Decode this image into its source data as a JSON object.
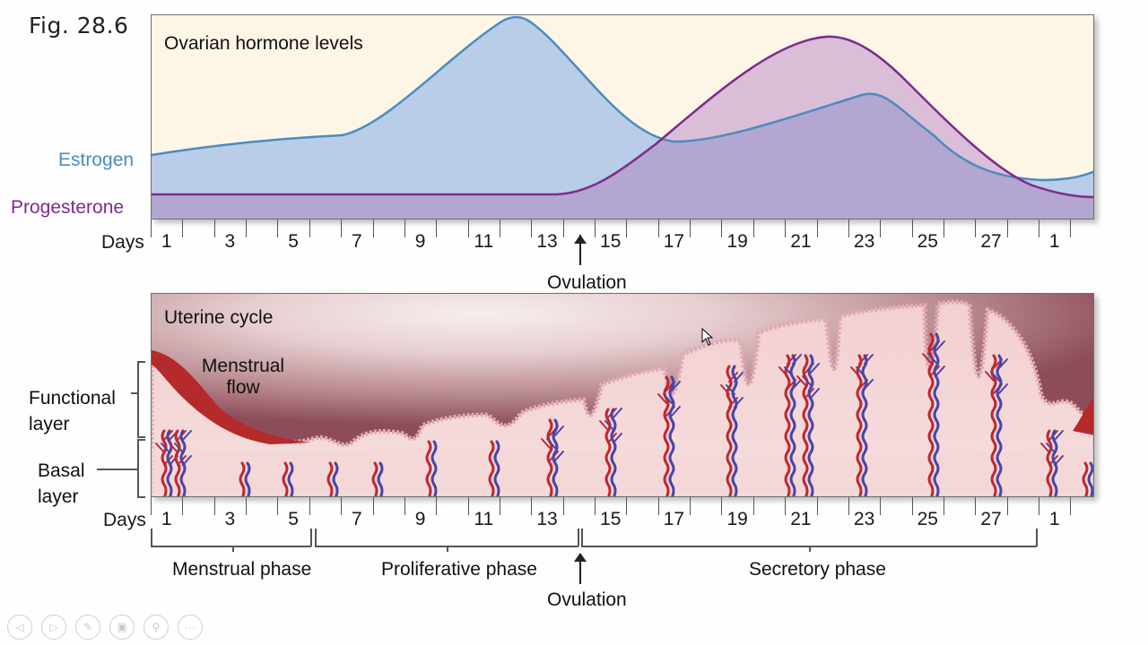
{
  "figure": {
    "label": "Fig. 28.6"
  },
  "hormone_panel": {
    "title": "Ovarian hormone levels",
    "series_labels": {
      "estrogen": "Estrogen",
      "progesterone": "Progesterone"
    },
    "colors": {
      "background": "#fdf6e6",
      "estrogen_line": "#4a8cc0",
      "estrogen_fill": "#b9cce8",
      "progesterone_line": "#7e2a8e",
      "progesterone_fill": "#b3a2cc",
      "progesterone_fill_above": "#d6b8d6"
    },
    "days_label": "Days",
    "day_ticks": [
      "1",
      "3",
      "5",
      "7",
      "9",
      "11",
      "13",
      "15",
      "17",
      "19",
      "21",
      "23",
      "25",
      "27",
      "1"
    ],
    "ovulation_label": "Ovulation"
  },
  "uterine_panel": {
    "title": "Uterine cycle",
    "menstrual_flow_label_1": "Menstrual",
    "menstrual_flow_label_2": "flow",
    "layer_labels": {
      "functional_1": "Functional",
      "functional_2": "layer",
      "basal_1": "Basal",
      "basal_2": "layer"
    },
    "days_label": "Days",
    "day_ticks": [
      "1",
      "3",
      "5",
      "7",
      "9",
      "11",
      "13",
      "15",
      "17",
      "19",
      "21",
      "23",
      "25",
      "27",
      "1"
    ],
    "phases": {
      "menstrual": "Menstrual phase",
      "proliferative": "Proliferative phase",
      "secretory": "Secretory phase"
    },
    "ovulation_label": "Ovulation"
  },
  "toolbar": {
    "buttons": [
      {
        "name": "previous-slide",
        "icon": "◁"
      },
      {
        "name": "next-slide",
        "icon": "▷"
      },
      {
        "name": "pen",
        "icon": "✎"
      },
      {
        "name": "slides-grid",
        "icon": "▣"
      },
      {
        "name": "zoom",
        "icon": "⚲"
      },
      {
        "name": "more",
        "icon": "···"
      }
    ]
  },
  "chart_data": {
    "type": "area",
    "title": "Ovarian hormone levels",
    "xlabel": "Days",
    "ylabel": "",
    "x": [
      1,
      3,
      5,
      7,
      9,
      11,
      12,
      13,
      15,
      17,
      19,
      21,
      22,
      23,
      25,
      27,
      28,
      1
    ],
    "series": [
      {
        "name": "Estrogen",
        "values": [
          0.32,
          0.38,
          0.41,
          0.43,
          0.58,
          0.88,
          1.0,
          0.9,
          0.55,
          0.4,
          0.44,
          0.55,
          0.6,
          0.62,
          0.4,
          0.21,
          0.2,
          0.24
        ]
      },
      {
        "name": "Progesterone",
        "values": [
          0.13,
          0.13,
          0.13,
          0.13,
          0.13,
          0.13,
          0.13,
          0.13,
          0.18,
          0.5,
          0.8,
          0.94,
          0.96,
          0.93,
          0.63,
          0.25,
          0.14,
          0.12
        ]
      }
    ],
    "annotations": [
      "Ovulation (day 14)"
    ],
    "grid": false,
    "legend_position": "left labels"
  }
}
